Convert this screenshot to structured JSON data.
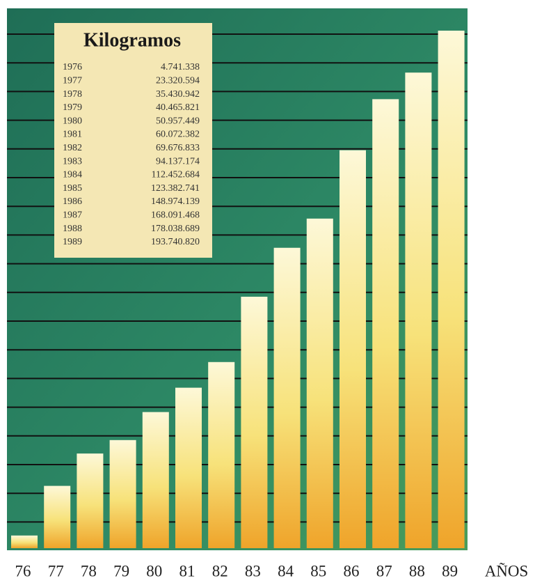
{
  "chart_data": {
    "type": "bar",
    "categories": [
      "76",
      "77",
      "78",
      "79",
      "80",
      "81",
      "82",
      "83",
      "84",
      "85",
      "86",
      "87",
      "88",
      "89"
    ],
    "values": [
      4741338,
      23320594,
      35430942,
      40465821,
      50957449,
      60072382,
      69676833,
      94137174,
      112452684,
      123382741,
      148974139,
      168091468,
      178038689,
      193740820
    ],
    "value_labels": [
      "4.741.338",
      "23.320.594",
      "35.430.942",
      "40.465.821",
      "50.957.449",
      "60.072.382",
      "69.676.833",
      "94.137.174",
      "112.452.684",
      "123.382.741",
      "148.974.139",
      "168.091.468",
      "178.038.689",
      "193.740.820"
    ],
    "table": {
      "title": "Kilogramos",
      "years": [
        "1976",
        "1977",
        "1978",
        "1979",
        "1980",
        "1981",
        "1982",
        "1983",
        "1984",
        "1985",
        "1986",
        "1987",
        "1988",
        "1989"
      ]
    },
    "x_label": "AÑOS",
    "ylim": [
      0,
      200000000
    ],
    "color": "#f2c430"
  }
}
